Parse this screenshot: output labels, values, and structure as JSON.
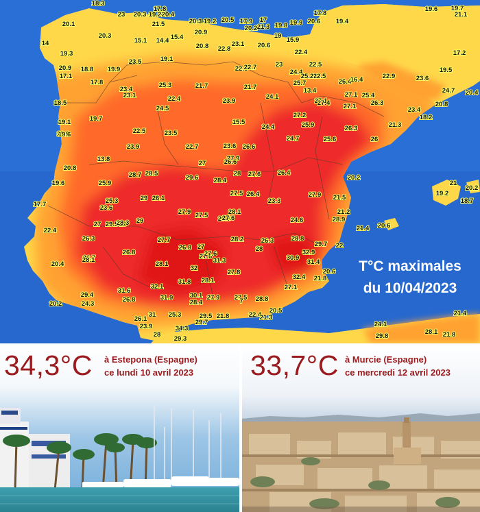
{
  "map": {
    "title_line1": "T°C maximales",
    "title_line2": "du 10/04/2023",
    "colors": {
      "sea": "#2a6fd6",
      "t_low": "#ffd84a",
      "t_mid": "#ffa233",
      "t_high": "#ff6a2a",
      "t_very_high": "#ee2b2b",
      "label_text": "#111111",
      "label_bg": "#ffff66"
    },
    "temperature_labels": [
      "18.3",
      "23",
      "20.3",
      "19.2",
      "17.8",
      "20.4",
      "20.3",
      "19.2",
      "20.5",
      "17.9",
      "17",
      "19.8",
      "19.9",
      "20.6",
      "20.1",
      "21.5",
      "15.4",
      "20.9",
      "20.2",
      "21.3",
      "15.9",
      "17.8",
      "19.4",
      "14",
      "20.3",
      "15.1",
      "14.4",
      "20.8",
      "22.8",
      "23.1",
      "20.6",
      "19",
      "22.4",
      "19.3",
      "20.9",
      "18.8",
      "19.9",
      "23.5",
      "19.1",
      "22.8",
      "22.7",
      "23",
      "22.5",
      "24.4",
      "22.5",
      "17.1",
      "17.8",
      "23.4",
      "25.3",
      "21.7",
      "21.7",
      "25.2",
      "25.7",
      "26.4",
      "27.1",
      "25.4",
      "18.5",
      "23.1",
      "22.4",
      "23.9",
      "24.1",
      "27.1",
      "26.3",
      "24.5",
      "27.4",
      "27.1",
      "19.1",
      "19.7",
      "27.2",
      "21.3",
      "22.5",
      "23.5",
      "24.4",
      "25.9",
      "26.3",
      "19.6",
      "15.5",
      "24.7",
      "25.6",
      "26",
      "19.6",
      "23.9",
      "22.7",
      "23.6",
      "26.6",
      "13.8",
      "27",
      "27.9",
      "26.6",
      "20.8",
      "28.7",
      "28.5",
      "29.6",
      "28.4",
      "28",
      "27.6",
      "26.4",
      "20.2",
      "19.6",
      "25.9",
      "26.1",
      "29",
      "27.5",
      "26.4",
      "23.3",
      "27.9",
      "21.5",
      "17.7",
      "25.3",
      "23.6",
      "27",
      "28.1",
      "21.2",
      "22.4",
      "28",
      "29.5",
      "28.3",
      "29",
      "27.9",
      "27.5",
      "26.5",
      "27.6",
      "24.6",
      "28.9",
      "21.4",
      "20.6",
      "26.3",
      "27.7",
      "28.2",
      "26.3",
      "28.8",
      "22",
      "27.6",
      "26.8",
      "27",
      "27.6",
      "28",
      "30.9",
      "32.9",
      "26.7",
      "26.8",
      "28.1",
      "31.3",
      "29.7",
      "31.4",
      "20.4",
      "32",
      "27.8",
      "32.4",
      "20.6",
      "28.1",
      "32.1",
      "31.8",
      "28.1",
      "27.1",
      "21.8",
      "29.4",
      "31.6",
      "31.9",
      "30.1",
      "27.9",
      "27.5",
      "28.8",
      "24.3",
      "26.8",
      "28.4",
      "7",
      "20.5",
      "20.2",
      "26.1",
      "31",
      "25.3",
      "29.5",
      "21.8",
      "22.4",
      "21.3",
      "23.9",
      "28",
      "29.7",
      "34.3",
      "29.3",
      "24.1",
      "28.1",
      "21.8",
      "29.8",
      "21.4",
      "21",
      "20.2",
      "19.2",
      "18.7",
      "19.7",
      "19.6",
      "22.9",
      "21.1",
      "23.6",
      "17.2",
      "24.7",
      "20.8",
      "23.4",
      "18.2",
      "16.4",
      "13.4",
      "19.5",
      "20.4"
    ]
  },
  "left_panel": {
    "temperature": "34,3°C",
    "place_line1": "à Estepona (Espagne)",
    "place_line2": "ce lundi 10 avril 2023"
  },
  "right_panel": {
    "temperature": "33,7°C",
    "place_line1": "à Murcie (Espagne)",
    "place_line2": "ce mercredi 12 avril 2023"
  }
}
